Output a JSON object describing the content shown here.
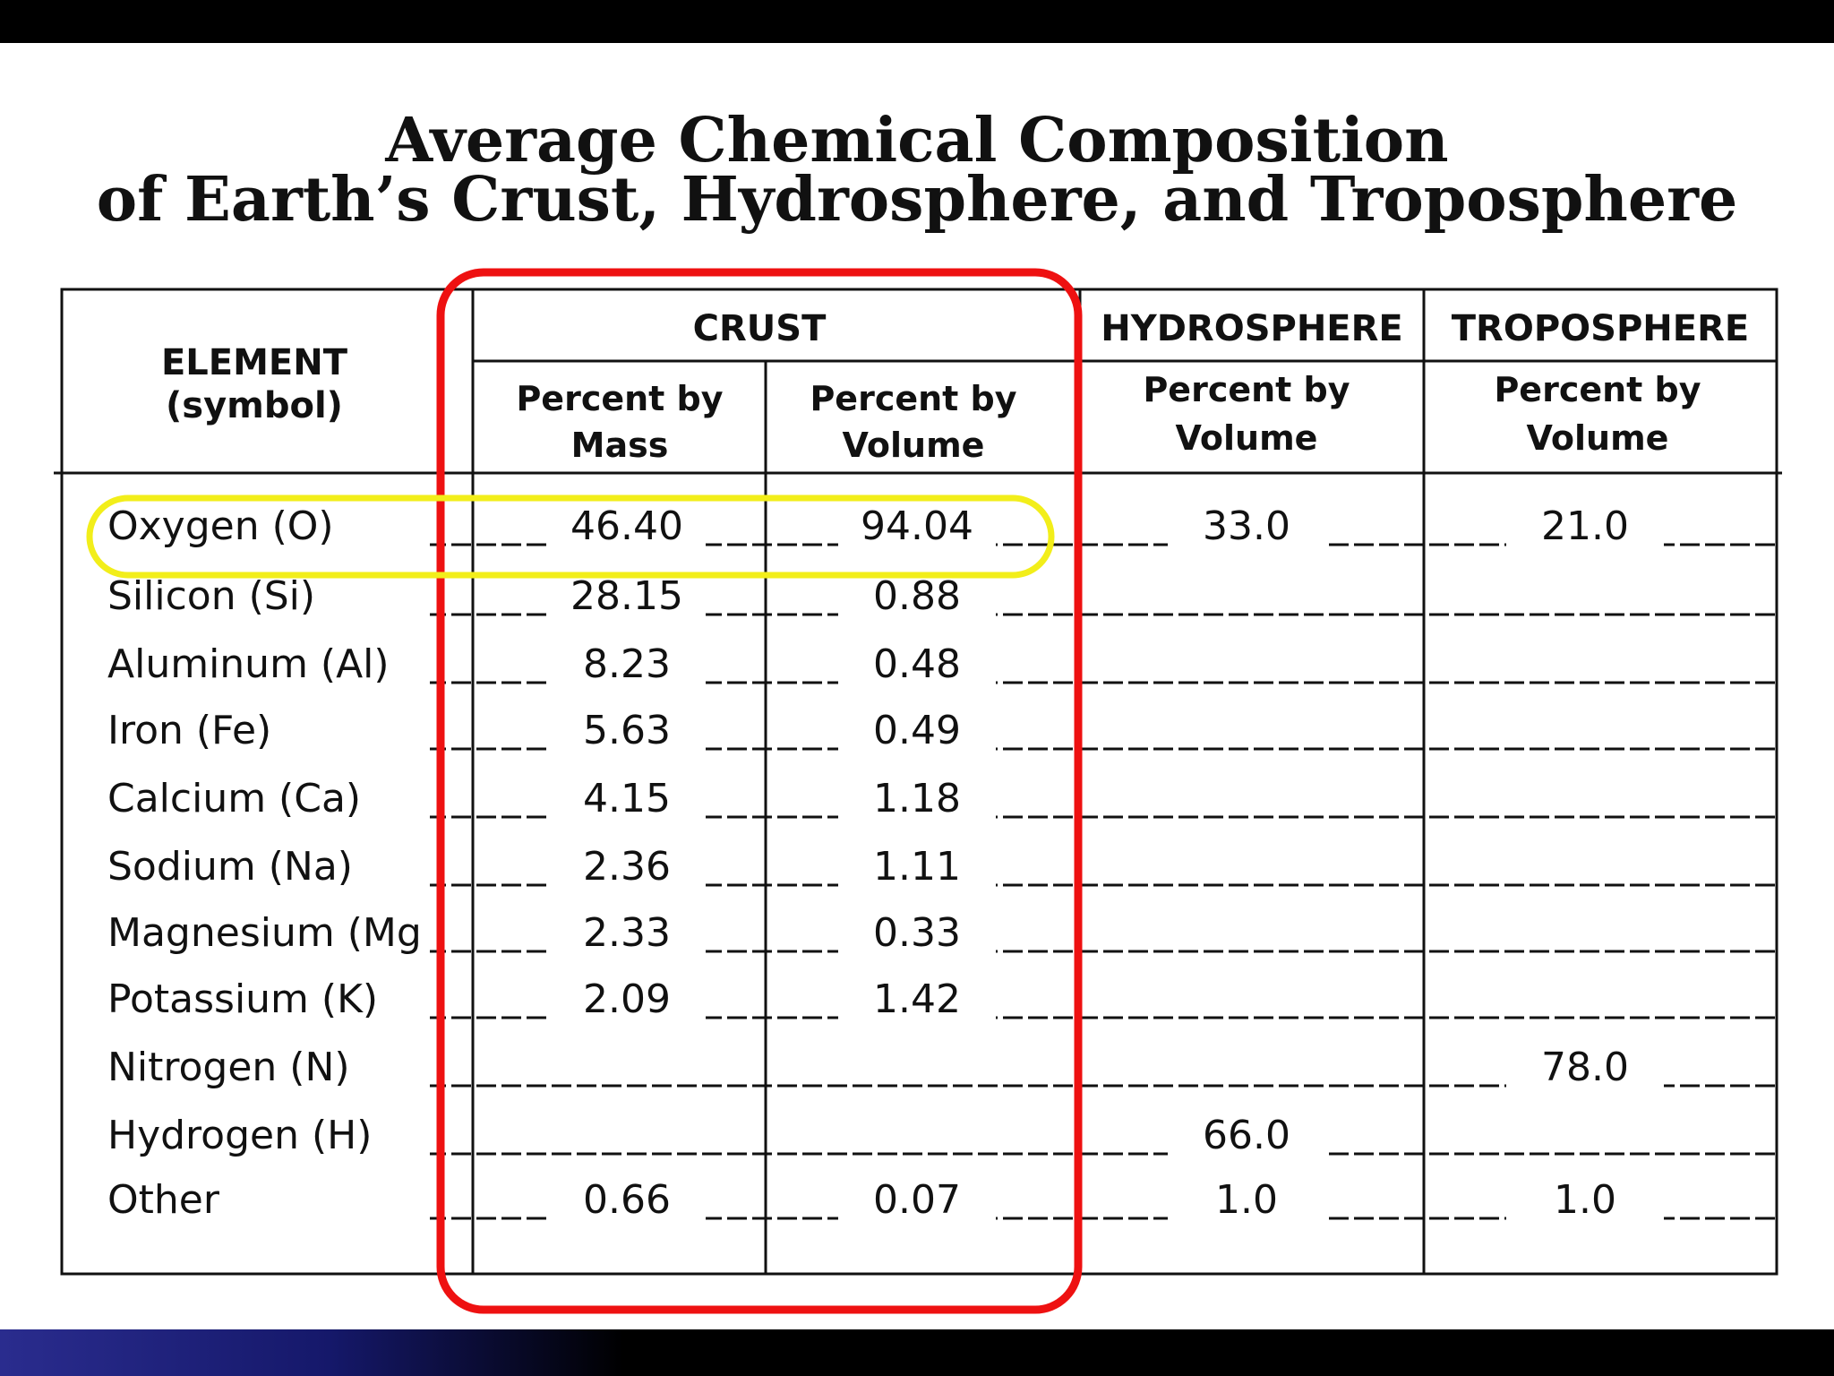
{
  "title": {
    "line1": "Average Chemical Composition",
    "line2": "of Earth’s Crust, Hydrosphere, and Troposphere"
  },
  "table": {
    "element_header": {
      "line1": "ELEMENT",
      "line2": "(symbol)"
    },
    "groups": {
      "crust": "CRUST",
      "hydrosphere": "HYDROSPHERE",
      "troposphere": "TROPOSPHERE"
    },
    "subheaders": {
      "crust_mass": {
        "line1": "Percent by",
        "line2": "Mass"
      },
      "crust_volume": {
        "line1": "Percent by",
        "line2": "Volume"
      },
      "hydro_volume": {
        "line1": "Percent by",
        "line2": "Volume"
      },
      "tropo_volume": {
        "line1": "Percent by",
        "line2": "Volume"
      }
    },
    "rows": [
      {
        "element": "Oxygen (O)",
        "crust_mass": "46.40",
        "crust_volume": "94.04",
        "hydro_volume": "33.0",
        "tropo_volume": "21.0"
      },
      {
        "element": "Silicon (Si)",
        "crust_mass": "28.15",
        "crust_volume": "0.88",
        "hydro_volume": "",
        "tropo_volume": ""
      },
      {
        "element": "Aluminum (Al)",
        "crust_mass": "8.23",
        "crust_volume": "0.48",
        "hydro_volume": "",
        "tropo_volume": ""
      },
      {
        "element": "Iron (Fe)",
        "crust_mass": "5.63",
        "crust_volume": "0.49",
        "hydro_volume": "",
        "tropo_volume": ""
      },
      {
        "element": "Calcium (Ca)",
        "crust_mass": "4.15",
        "crust_volume": "1.18",
        "hydro_volume": "",
        "tropo_volume": ""
      },
      {
        "element": "Sodium (Na)",
        "crust_mass": "2.36",
        "crust_volume": "1.11",
        "hydro_volume": "",
        "tropo_volume": ""
      },
      {
        "element": "Magnesium (Mg",
        "crust_mass": "2.33",
        "crust_volume": "0.33",
        "hydro_volume": "",
        "tropo_volume": ""
      },
      {
        "element": "Potassium (K)",
        "crust_mass": "2.09",
        "crust_volume": "1.42",
        "hydro_volume": "",
        "tropo_volume": ""
      },
      {
        "element": "Nitrogen (N)",
        "crust_mass": "",
        "crust_volume": "",
        "hydro_volume": "",
        "tropo_volume": "78.0"
      },
      {
        "element": "Hydrogen (H)",
        "crust_mass": "",
        "crust_volume": "",
        "hydro_volume": "66.0",
        "tropo_volume": ""
      },
      {
        "element": "Other",
        "crust_mass": "0.66",
        "crust_volume": "0.07",
        "hydro_volume": "1.0",
        "tropo_volume": "1.0"
      }
    ]
  },
  "annotations": {
    "crust_highlight_color": "#ee1111",
    "oxygen_highlight_color": "#f2ee1a"
  }
}
